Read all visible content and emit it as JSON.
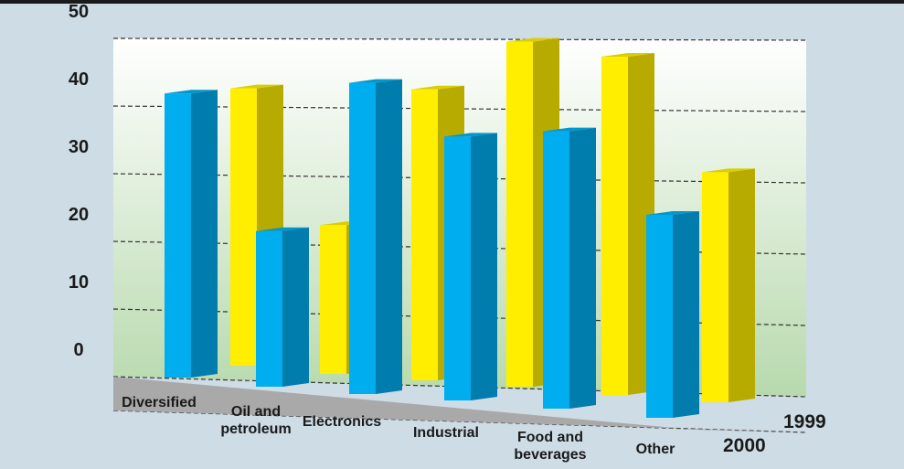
{
  "colors": {
    "background": "#cedce6",
    "top_rule": "#1a1a1a",
    "wall_top": "#ffffff",
    "wall_bottom": "#b7d9ad",
    "floor": "#a9a9a9",
    "series_1999": "#ffee00",
    "series_2000": "#00aeef"
  },
  "chart_data": {
    "type": "bar",
    "style": "3d-grouped",
    "categories": [
      "Diversified",
      "Oil and petroleum",
      "Electronics",
      "Industrial",
      "Food and beverages",
      "Other"
    ],
    "category_labels": [
      [
        "Diversified"
      ],
      [
        "Oil and",
        "petroleum"
      ],
      [
        "Electronics"
      ],
      [
        "Industrial"
      ],
      [
        "Food and",
        "beverages"
      ],
      [
        "Other"
      ]
    ],
    "series": [
      {
        "name": "1999",
        "values": [
          41,
          22,
          43,
          51,
          50,
          34
        ]
      },
      {
        "name": "2000",
        "values": [
          42,
          23,
          46,
          39,
          41,
          30
        ]
      }
    ],
    "yticks": [
      0,
      10,
      20,
      30,
      40,
      50
    ],
    "ylim": [
      0,
      50
    ],
    "grid": true,
    "title": "",
    "xlabel": "",
    "ylabel": ""
  }
}
